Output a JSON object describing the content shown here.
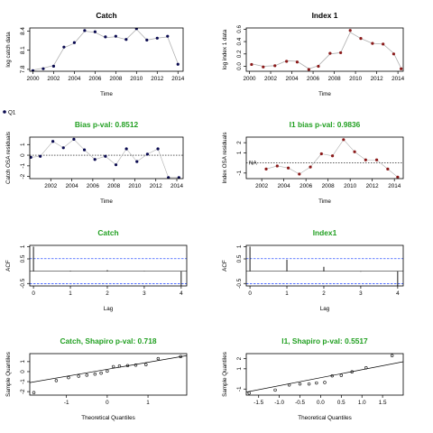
{
  "colors": {
    "title_green": "#22a022",
    "ci_blue": "#3355ff",
    "point_navy": "#0a0a50",
    "point_red": "#8b1a1a",
    "link_gray": "#b0b0b0"
  },
  "legend": {
    "label": "Q1",
    "marker_color": "#0a0a50"
  },
  "chart_data": [
    {
      "type": "line",
      "title": "Catch",
      "title_color": "#000000",
      "xlabel": "Time",
      "ylabel": "log catch data",
      "xlim": [
        1999.7,
        2014.5
      ],
      "ylim": [
        7.77,
        8.45
      ],
      "xticks": [
        2000,
        2002,
        2004,
        2006,
        2008,
        2010,
        2012,
        2014
      ],
      "yticks": [
        7.8,
        8.1,
        8.4
      ],
      "x": [
        2000,
        2001,
        2002,
        2003,
        2004,
        2005,
        2006,
        2007,
        2008,
        2009,
        2010,
        2011,
        2012,
        2013,
        2014
      ],
      "observed": [
        7.78,
        7.81,
        7.85,
        8.15,
        8.22,
        8.41,
        8.39,
        8.31,
        8.32,
        8.27,
        8.44,
        8.26,
        8.29,
        8.32,
        7.88
      ],
      "fitted": [
        7.79,
        7.82,
        7.86,
        8.14,
        8.21,
        8.4,
        8.38,
        8.3,
        8.31,
        8.27,
        8.43,
        8.26,
        8.29,
        8.31,
        7.89
      ],
      "point_color": "navy"
    },
    {
      "type": "line",
      "title": "Index 1",
      "title_color": "#000000",
      "xlabel": "Time",
      "ylabel": "log index 1 data",
      "xlim": [
        1999.7,
        2014.5
      ],
      "ylim": [
        -0.08,
        0.62
      ],
      "xticks": [
        2000,
        2002,
        2004,
        2006,
        2008,
        2010,
        2012,
        2014
      ],
      "yticks": [
        0.0,
        0.2,
        0.4,
        0.6
      ],
      "yticklabels": [
        "0.0",
        "0.2",
        "0.4",
        "0.6"
      ],
      "x": [
        2000.2,
        2001.3,
        2002.4,
        2003.5,
        2004.5,
        2005.6,
        2006.5,
        2007.6,
        2008.6,
        2009.5,
        2010.5,
        2011.6,
        2012.6,
        2013.6,
        2014.3
      ],
      "observed": [
        0.03,
        -0.01,
        0.01,
        0.08,
        0.07,
        -0.05,
        0.0,
        0.21,
        0.22,
        0.58,
        0.45,
        0.37,
        0.36,
        0.2,
        -0.04
      ],
      "fitted": [
        0.04,
        0.0,
        0.01,
        0.09,
        0.08,
        -0.04,
        0.01,
        0.2,
        0.22,
        0.55,
        0.45,
        0.37,
        0.36,
        0.21,
        -0.03
      ],
      "point_color": "red"
    },
    {
      "type": "scatter",
      "title": "Bias p-val: 0.8512",
      "title_color": "#22a022",
      "xlabel": "Time",
      "ylabel": "Catch OSA residuals",
      "xlim": [
        2000,
        2014.6
      ],
      "ylim": [
        -2.2,
        1.7
      ],
      "xticks": [
        2002,
        2004,
        2006,
        2008,
        2010,
        2012,
        2014
      ],
      "yticks": [
        -2,
        -1,
        0,
        1
      ],
      "x": [
        2000.1,
        2001.0,
        2002.2,
        2003.2,
        2004.2,
        2005.2,
        2006.2,
        2007.2,
        2008.2,
        2009.2,
        2010.2,
        2011.2,
        2012.2,
        2013.2,
        2014.2
      ],
      "y": [
        -0.2,
        -0.1,
        1.3,
        0.7,
        1.5,
        0.5,
        -0.4,
        -0.1,
        -0.9,
        0.6,
        -0.6,
        0.1,
        0.6,
        -2.1,
        -2.1
      ],
      "hline": 0,
      "point_color": "navy"
    },
    {
      "type": "scatter",
      "title": "I1 bias p-val: 0.9836",
      "title_color": "#22a022",
      "xlabel": "Time",
      "ylabel": "Index OSA residuals",
      "xlim": [
        2000.6,
        2014.8
      ],
      "ylim": [
        -1.55,
        2.55
      ],
      "xticks": [
        2002,
        2004,
        2006,
        2008,
        2010,
        2012,
        2014
      ],
      "yticks": [
        -1,
        1,
        2
      ],
      "x": [
        2002.4,
        2003.4,
        2004.4,
        2005.4,
        2006.4,
        2007.4,
        2008.4,
        2009.4,
        2010.4,
        2011.4,
        2012.4,
        2013.4,
        2014.3
      ],
      "y": [
        -0.6,
        -0.3,
        -0.5,
        -1.1,
        -0.4,
        0.9,
        0.7,
        2.3,
        1.1,
        0.3,
        0.3,
        -0.6,
        -1.4
      ],
      "hline": 0,
      "annotation": "NA",
      "point_color": "red"
    },
    {
      "type": "bar",
      "title": "Catch",
      "title_color": "#22a022",
      "xlabel": "Lag",
      "ylabel": "ACF",
      "xlim": [
        -0.1,
        4.15
      ],
      "ylim": [
        -0.6,
        1.05
      ],
      "xticks": [
        0,
        1,
        2,
        3,
        4
      ],
      "yticks": [
        -0.5,
        0.5,
        1
      ],
      "lags": [
        0,
        1,
        2,
        3,
        4
      ],
      "values": [
        1.0,
        0.02,
        0.04,
        0.01,
        -0.6
      ],
      "conf_limits": [
        0.51,
        -0.51
      ]
    },
    {
      "type": "bar",
      "title": "Index1",
      "title_color": "#22a022",
      "xlabel": "Lag",
      "ylabel": "ACF",
      "xlim": [
        -0.1,
        4.15
      ],
      "ylim": [
        -0.6,
        1.05
      ],
      "xticks": [
        0,
        1,
        2,
        3,
        4
      ],
      "yticks": [
        -0.5,
        0.5,
        1
      ],
      "lags": [
        0,
        1,
        2,
        3,
        4
      ],
      "values": [
        1.0,
        0.47,
        0.18,
        -0.02,
        -0.6
      ],
      "conf_limits": [
        0.51,
        -0.51
      ]
    },
    {
      "type": "scatter",
      "title": "Catch, Shapiro p-val: 0.718",
      "title_color": "#22a022",
      "xlabel": "Theoretical Quantiles",
      "ylabel": "Sample Quantiles",
      "xlim": [
        -1.9,
        1.95
      ],
      "ylim": [
        -2.35,
        1.8
      ],
      "xticks": [
        -1,
        0,
        1
      ],
      "yticks": [
        -2,
        -1,
        0,
        1
      ],
      "x": [
        -1.8,
        -1.25,
        -0.95,
        -0.7,
        -0.5,
        -0.3,
        -0.15,
        0,
        0.15,
        0.3,
        0.5,
        0.7,
        0.95,
        1.25,
        1.8
      ],
      "y": [
        -2.1,
        -0.9,
        -0.6,
        -0.45,
        -0.35,
        -0.25,
        -0.15,
        0.05,
        0.5,
        0.55,
        0.6,
        0.65,
        0.7,
        1.3,
        1.5
      ],
      "reference_line": [
        [
          -1.9,
          -1.1
        ],
        [
          1.95,
          1.6
        ]
      ],
      "marker": "open"
    },
    {
      "type": "scatter",
      "title": "I1, Shapiro p-val: 0.5517",
      "title_color": "#22a022",
      "xlabel": "Theoretical Quantiles",
      "ylabel": "Sample Quantiles",
      "xlim": [
        -1.8,
        2.0
      ],
      "ylim": [
        -1.6,
        2.5
      ],
      "xticks": [
        -1.5,
        -1.0,
        -0.5,
        0.0,
        0.5,
        1.0,
        1.5
      ],
      "xticklabels": [
        "-1.5",
        "-1.0",
        "-0.5",
        "0.0",
        "0.5",
        "1.0",
        "1.5"
      ],
      "yticks": [
        -1,
        1,
        2
      ],
      "x": [
        -1.73,
        -1.1,
        -0.76,
        -0.5,
        -0.28,
        -0.1,
        0.1,
        0.28,
        0.5,
        0.76,
        1.1,
        1.73
      ],
      "y": [
        -1.4,
        -1.1,
        -0.6,
        -0.5,
        -0.5,
        -0.4,
        -0.35,
        0.3,
        0.35,
        0.7,
        1.1,
        2.3
      ],
      "reference_line": [
        [
          -1.8,
          -1.3
        ],
        [
          2.0,
          1.7
        ]
      ],
      "marker": "open"
    }
  ]
}
